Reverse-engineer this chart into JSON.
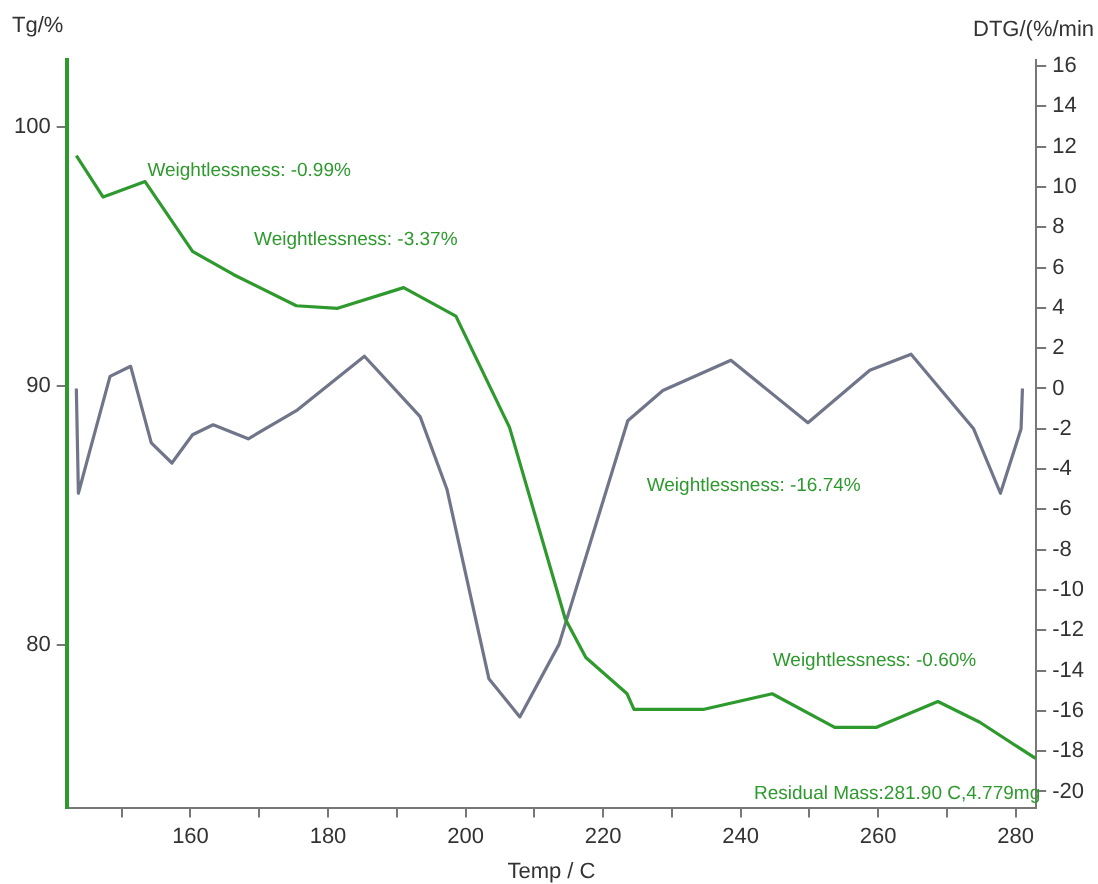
{
  "chart_data": {
    "type": "line",
    "xlabel": "Temp / C",
    "ylabel": "Tg/%",
    "y2label": "DTG/(%/min",
    "xlim": [
      142,
      283
    ],
    "xticks": [
      {
        "value": 150,
        "label": null
      },
      160,
      {
        "value": 170,
        "label": null
      },
      180,
      {
        "value": 190,
        "label": null
      },
      200,
      {
        "value": 210,
        "label": null
      },
      220,
      {
        "value": 230,
        "label": null
      },
      240,
      {
        "value": 250,
        "label": null
      },
      260,
      {
        "value": 270,
        "label": null
      },
      280
    ],
    "ylim": [
      73.7,
      102.6
    ],
    "yticks": [
      80,
      90,
      100
    ],
    "y2lim": [
      -20.8,
      16.3
    ],
    "y2ticks": [
      -20,
      -18,
      -16,
      -14,
      -12,
      -10,
      -8,
      -6,
      -4,
      -2,
      0,
      2,
      4,
      6,
      8,
      10,
      12,
      14,
      16
    ],
    "series": [
      {
        "color": "#2e9a2e",
        "x": [
          143.4,
          147.3,
          153.4,
          160.3,
          166.3,
          175.4,
          181.4,
          191,
          198.6,
          206.4,
          214.5,
          217.5,
          223.5,
          224.5,
          234.7,
          244.6,
          253.7,
          259.7,
          268.7,
          274.8,
          282.9
        ],
        "values": [
          98.9,
          97.3,
          97.9,
          95.2,
          94.3,
          93.1,
          93,
          93.8,
          92.7,
          88.4,
          81,
          79.5,
          78.1,
          77.5,
          77.5,
          78.1,
          76.8,
          76.8,
          77.8,
          77,
          75.6
        ]
      },
      {
        "color": "#70758a",
        "axis": "y2",
        "x": [
          143.4,
          143.7,
          145.2,
          148.3,
          151.3,
          154.3,
          157.3,
          160.3,
          163.3,
          168.4,
          175.4,
          185.3,
          193.4,
          197.3,
          203.4,
          207.9,
          213.6,
          223.6,
          228.7,
          238.6,
          249.8,
          258.8,
          264.8,
          273.9,
          277.8,
          280.8,
          281
        ],
        "values": [
          0,
          -5.2,
          -3.3,
          0.6,
          1.1,
          -2.7,
          -3.7,
          -2.3,
          -1.8,
          -2.5,
          -1.1,
          1.6,
          -1.4,
          -5,
          -14.4,
          -16.3,
          -12.7,
          -1.6,
          -0.1,
          1.4,
          -1.7,
          0.9,
          1.7,
          -2,
          -5.2,
          -2,
          0
        ]
      }
    ],
    "annotations": [
      "Weightlessness: -0.99%",
      "Weightlessness: -3.37%",
      "Weightlessness: -16.74%",
      "Weightlessness: -0.60%",
      "Residual Mass:281.90 C,4.779mg"
    ],
    "legend": false,
    "grid": false,
    "line_style": "solid",
    "marker": "none"
  }
}
